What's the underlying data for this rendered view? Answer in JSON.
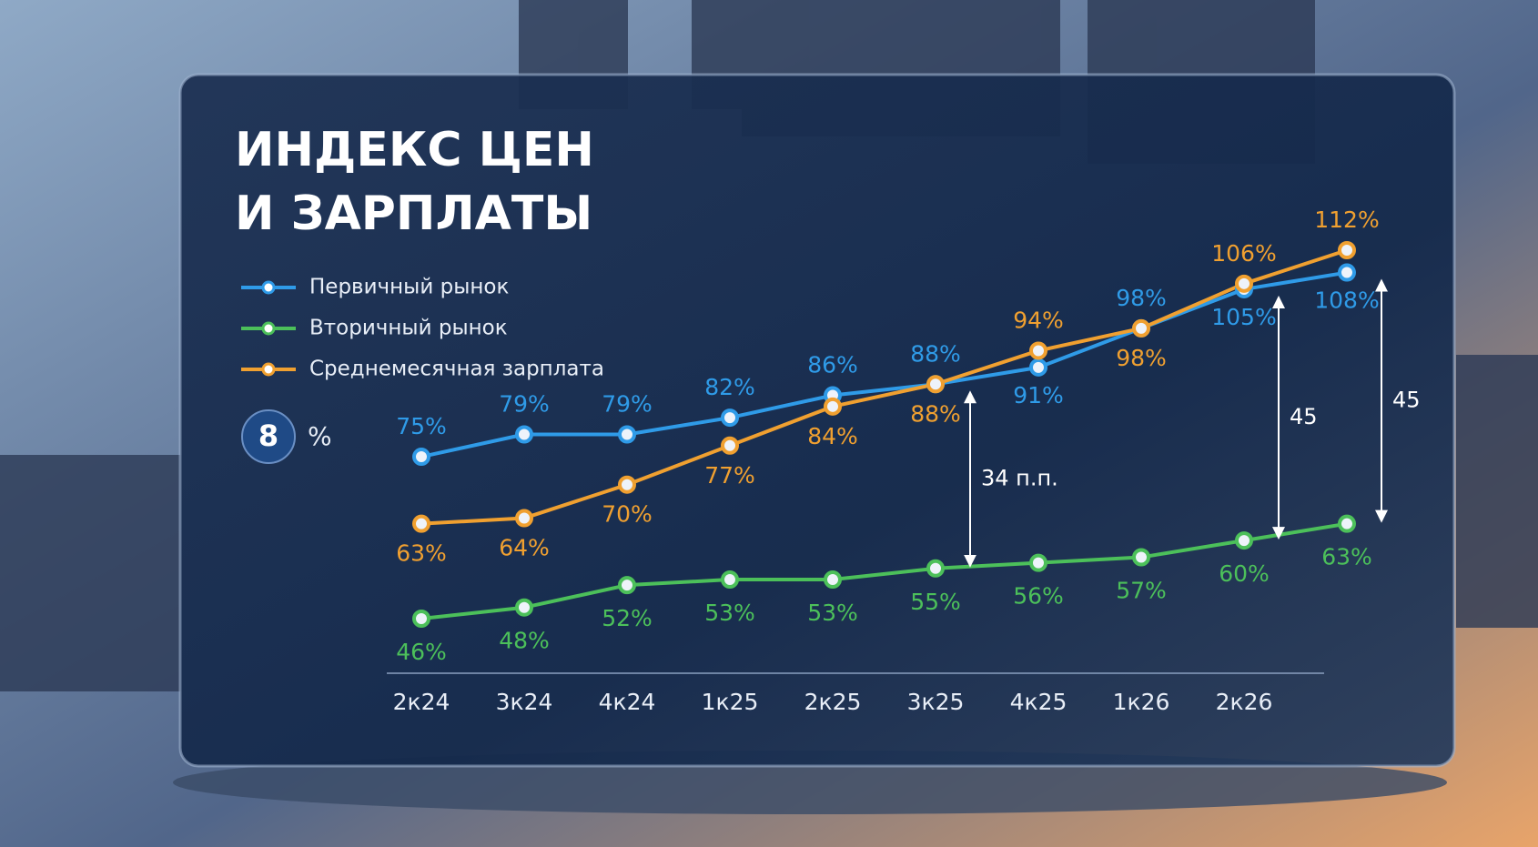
{
  "chart_data": {
    "type": "line",
    "title_lines": [
      "ИНДЕКС ЦЕН",
      "И ЗАРПЛАТЫ"
    ],
    "badge": {
      "number": "8",
      "unit": "%"
    },
    "categories": [
      "2к24",
      "3к24",
      "4к24",
      "1к25",
      "2к25",
      "3к25",
      "4к25",
      "1к26",
      "2к26",
      null
    ],
    "series": [
      {
        "name": "Первичный рынок",
        "color": "#2f9be8",
        "values": [
          75,
          79,
          79,
          82,
          86,
          88,
          91,
          98,
          105,
          108
        ],
        "value_labels": [
          "75%",
          "79%",
          "79%",
          "82%",
          "86%",
          "88%",
          "91%",
          "98%",
          "105%",
          "108%"
        ]
      },
      {
        "name": "Вторичный рынок",
        "color": "#4cc05a",
        "values": [
          46,
          48,
          52,
          53,
          53,
          55,
          56,
          57,
          60,
          63
        ],
        "value_labels": [
          "46%",
          "48%",
          "52%",
          "53%",
          "53%",
          "55%",
          "56%",
          "57%",
          "60%",
          "63%"
        ]
      },
      {
        "name": "Среднемесячная зарплата",
        "color": "#f0a030",
        "values": [
          63,
          64,
          70,
          77,
          84,
          88,
          94,
          98,
          106,
          112
        ],
        "value_labels": [
          "63%",
          "64%",
          "70%",
          "77%",
          "84%",
          "88%",
          "94%",
          "98%",
          "106%",
          "112%"
        ]
      }
    ],
    "annotations": [
      "34 п.п.",
      "45",
      "45"
    ]
  }
}
